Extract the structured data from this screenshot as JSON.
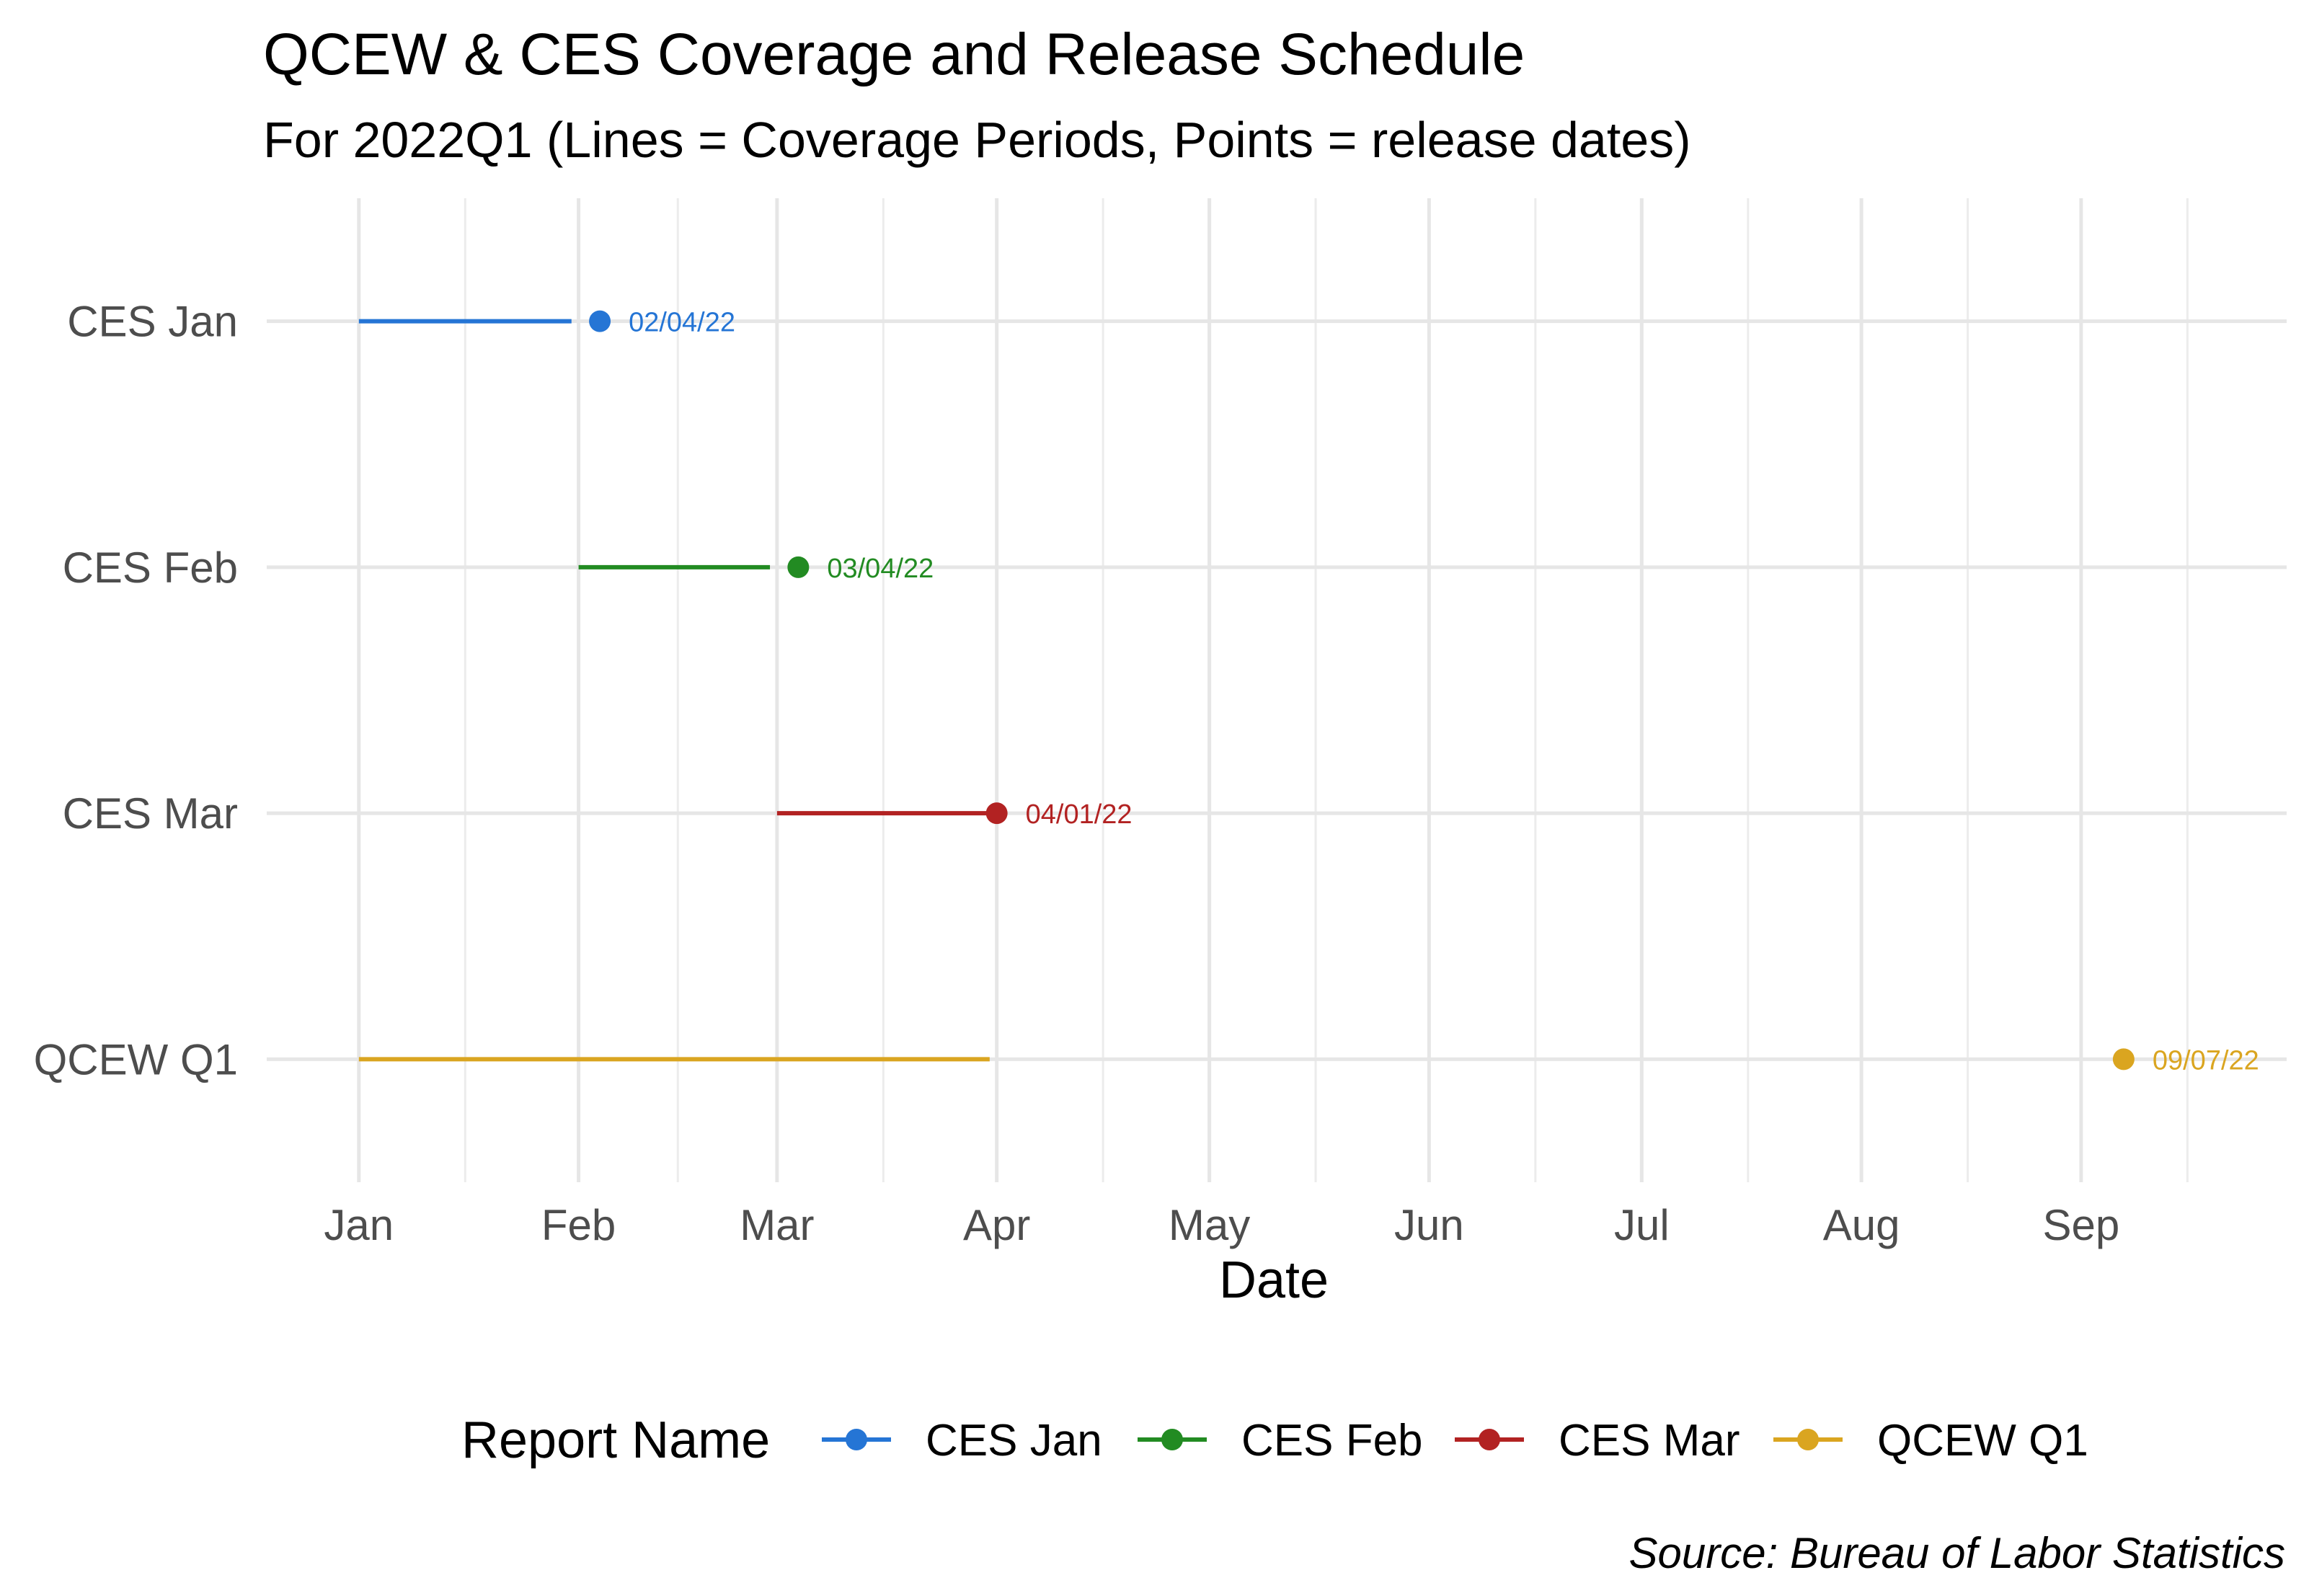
{
  "chart_data": {
    "type": "timeline",
    "title": "QCEW & CES Coverage and Release Schedule",
    "subtitle": "For 2022Q1 (Lines = Coverage Periods, Points = release dates)",
    "xlabel": "Date",
    "ylabel": "",
    "x_range": [
      "2021-12-19",
      "2022-09-30"
    ],
    "x_ticks": [
      {
        "date": "2022-01-01",
        "label": "Jan"
      },
      {
        "date": "2022-02-01",
        "label": "Feb"
      },
      {
        "date": "2022-03-01",
        "label": "Mar"
      },
      {
        "date": "2022-04-01",
        "label": "Apr"
      },
      {
        "date": "2022-05-01",
        "label": "May"
      },
      {
        "date": "2022-06-01",
        "label": "Jun"
      },
      {
        "date": "2022-07-01",
        "label": "Jul"
      },
      {
        "date": "2022-08-01",
        "label": "Aug"
      },
      {
        "date": "2022-09-01",
        "label": "Sep"
      }
    ],
    "minor_gridlines": [
      "2022-01-16",
      "2022-02-15",
      "2022-03-16",
      "2022-04-16",
      "2022-05-16",
      "2022-06-16",
      "2022-07-16",
      "2022-08-16",
      "2022-09-16"
    ],
    "grid": true,
    "series": [
      {
        "name": "CES Jan",
        "color": "#2575D5",
        "coverage_start": "2022-01-01",
        "coverage_end": "2022-01-31",
        "release_date": "2022-02-04",
        "release_label": "02/04/22"
      },
      {
        "name": "CES Feb",
        "color": "#228B22",
        "coverage_start": "2022-02-01",
        "coverage_end": "2022-02-28",
        "release_date": "2022-03-04",
        "release_label": "03/04/22"
      },
      {
        "name": "CES Mar",
        "color": "#B22222",
        "coverage_start": "2022-03-01",
        "coverage_end": "2022-03-31",
        "release_date": "2022-04-01",
        "release_label": "04/01/22"
      },
      {
        "name": "QCEW Q1",
        "color": "#DAA520",
        "coverage_start": "2022-01-01",
        "coverage_end": "2022-03-31",
        "release_date": "2022-09-07",
        "release_label": "09/07/22"
      }
    ],
    "legend": {
      "title": "Report Name",
      "position": "bottom"
    },
    "caption": "Source: Bureau of Labor Statistics"
  }
}
